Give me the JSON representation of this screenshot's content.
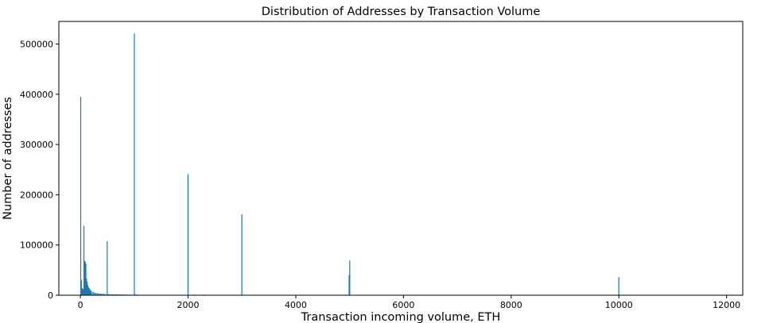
{
  "chart_data": {
    "type": "bar",
    "title": "Distribution of Addresses by Transaction Volume",
    "xlabel": "Transaction incoming volume, ETH",
    "ylabel": "Number of addresses",
    "xlim": [
      -400,
      12300
    ],
    "ylim": [
      0,
      545000
    ],
    "xticks": [
      0,
      2000,
      4000,
      6000,
      8000,
      10000,
      12000
    ],
    "xtick_labels": [
      "0",
      "2000",
      "4000",
      "6000",
      "8000",
      "10000",
      "12000"
    ],
    "yticks": [
      0,
      100000,
      200000,
      300000,
      400000,
      500000
    ],
    "ytick_labels": [
      "0",
      "100000",
      "200000",
      "300000",
      "400000",
      "500000"
    ],
    "grid": false,
    "legend": "none",
    "bar_color": "#1f77b4",
    "bin_width": 12,
    "x": [
      6,
      18,
      30,
      42,
      54,
      66,
      78,
      90,
      102,
      114,
      126,
      138,
      150,
      162,
      174,
      186,
      198,
      222,
      246,
      270,
      294,
      318,
      342,
      366,
      390,
      414,
      438,
      462,
      498,
      522,
      546,
      570,
      594,
      618,
      642,
      666,
      690,
      714,
      738,
      762,
      786,
      810,
      834,
      858,
      882,
      906,
      930,
      954,
      978,
      1002,
      1014,
      1038,
      1062,
      1086,
      1110,
      1200,
      1300,
      1400,
      1500,
      1600,
      1700,
      1800,
      1900,
      1998,
      2010,
      2100,
      2200,
      2300,
      2400,
      2500,
      2998,
      4990,
      5002,
      9998
    ],
    "values": [
      395000,
      30000,
      14000,
      13000,
      12000,
      138000,
      68000,
      67000,
      63000,
      33000,
      27000,
      20000,
      16000,
      14000,
      12000,
      10000,
      9000,
      7000,
      6000,
      5000,
      4500,
      4000,
      3500,
      3200,
      3000,
      2800,
      2600,
      2400,
      108000,
      2200,
      2000,
      1900,
      1800,
      1700,
      1650,
      1600,
      1550,
      1500,
      1450,
      1400,
      1350,
      1300,
      1250,
      1200,
      1150,
      1100,
      1050,
      1000,
      900,
      521000,
      1500,
      1200,
      1100,
      1000,
      900,
      800,
      700,
      650,
      600,
      550,
      500,
      450,
      400,
      241000,
      500,
      1500,
      1000,
      1200,
      800,
      1000,
      161000,
      40000,
      69000,
      36000
    ]
  }
}
